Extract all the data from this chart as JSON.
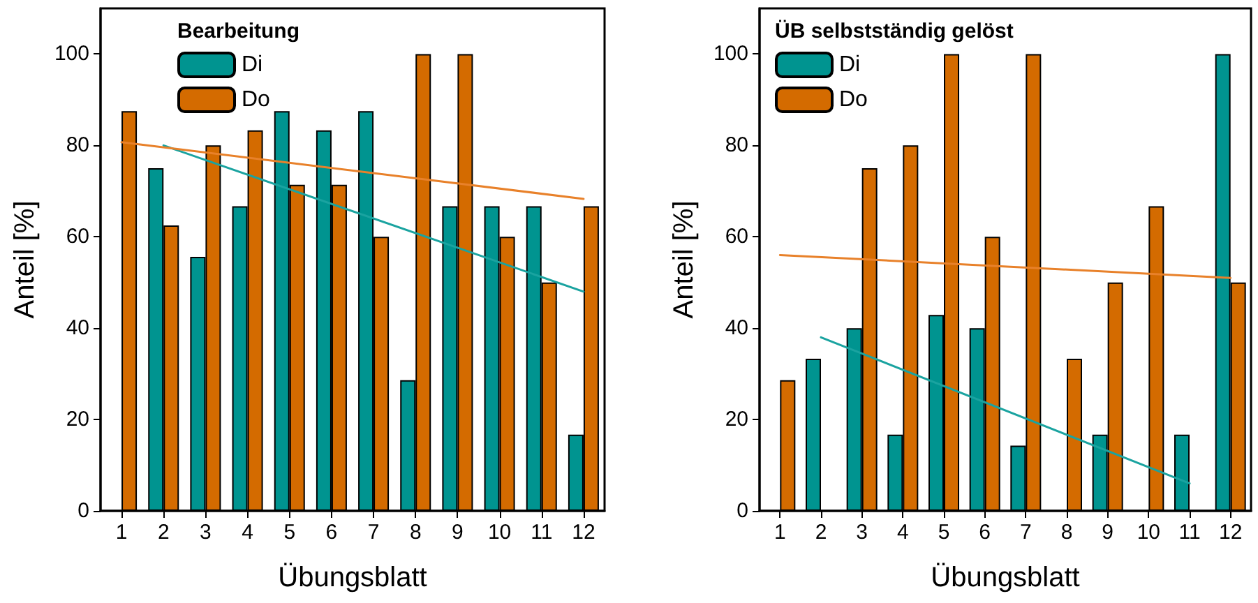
{
  "chart_data": [
    {
      "type": "bar",
      "legend_title": "Bearbeitung",
      "xlabel": "Übungsblatt",
      "ylabel": "Anteil [%]",
      "x": [
        1,
        2,
        3,
        4,
        5,
        6,
        7,
        8,
        9,
        10,
        11,
        12
      ],
      "xlim": [
        0.5,
        12.5
      ],
      "xticks": [
        1,
        2,
        3,
        4,
        5,
        6,
        7,
        8,
        9,
        10,
        11,
        12
      ],
      "ylim": [
        0,
        110
      ],
      "yticks": [
        0,
        20,
        40,
        60,
        80,
        100
      ],
      "legend": "top left",
      "series": [
        {
          "name": "Di",
          "color": "#009490",
          "values": [
            null,
            75,
            55.6,
            66.7,
            87.5,
            83.3,
            87.5,
            28.6,
            66.7,
            66.7,
            66.7,
            16.7
          ]
        },
        {
          "name": "Do",
          "color": "#d46b00",
          "values": [
            87.5,
            62.5,
            80,
            83.3,
            71.4,
            71.4,
            60,
            100,
            100,
            60,
            50,
            66.7
          ]
        },
        {
          "type": "line",
          "color": "#1aa3a0",
          "x": [
            2,
            12
          ],
          "values": [
            80,
            48
          ]
        },
        {
          "type": "line",
          "color": "#e8812a",
          "x": [
            1,
            12
          ],
          "values": [
            80.7,
            68.3
          ]
        }
      ]
    },
    {
      "type": "bar",
      "legend_title": "ÜB selbstständig gelöst",
      "xlabel": "Übungsblatt",
      "ylabel": "Anteil [%]",
      "x": [
        1,
        2,
        3,
        4,
        5,
        6,
        7,
        8,
        9,
        10,
        11,
        12
      ],
      "xlim": [
        0.5,
        12.5
      ],
      "xticks": [
        1,
        2,
        3,
        4,
        5,
        6,
        7,
        8,
        9,
        10,
        11,
        12
      ],
      "ylim": [
        0,
        110
      ],
      "yticks": [
        0,
        20,
        40,
        60,
        80,
        100
      ],
      "legend": "top left",
      "series": [
        {
          "name": "Di",
          "color": "#009490",
          "values": [
            null,
            33.3,
            40,
            16.7,
            42.9,
            40,
            14.3,
            null,
            16.7,
            null,
            16.7,
            100
          ]
        },
        {
          "name": "Do",
          "color": "#d46b00",
          "values": [
            28.6,
            null,
            75,
            80,
            100,
            60,
            100,
            33.3,
            50,
            66.7,
            null,
            50
          ]
        },
        {
          "type": "line",
          "color": "#1aa3a0",
          "x": [
            2,
            11
          ],
          "values": [
            38,
            6
          ]
        },
        {
          "type": "line",
          "color": "#e8812a",
          "x": [
            1,
            12
          ],
          "values": [
            56,
            51
          ]
        }
      ]
    }
  ]
}
